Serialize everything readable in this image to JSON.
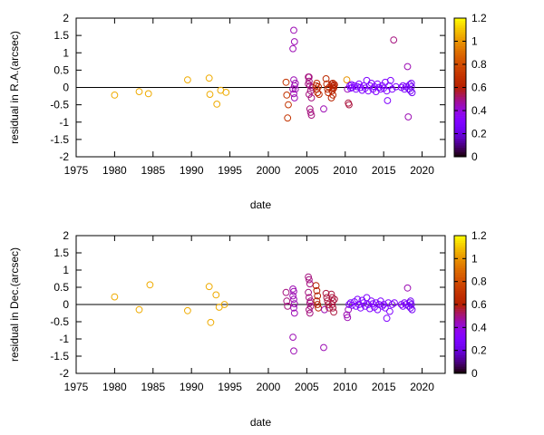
{
  "chart_data": [
    {
      "type": "scatter",
      "xlabel": "date",
      "ylabel": "residual in R.A.(arcsec)",
      "xlim": [
        1975,
        2023
      ],
      "ylim": [
        -2,
        2
      ],
      "xticks": [
        1975,
        1980,
        1985,
        1990,
        1995,
        2000,
        2005,
        2010,
        2015,
        2020
      ],
      "yticks": [
        -2,
        -1.5,
        -1,
        -0.5,
        0,
        0.5,
        1,
        1.5,
        2
      ],
      "colorbar": {
        "label": "",
        "range": [
          0,
          1.2
        ],
        "ticks": [
          0,
          0.2,
          0.4,
          0.6,
          0.8,
          1,
          1.2
        ]
      },
      "points": [
        [
          1980.0,
          -0.22,
          1.05
        ],
        [
          1983.2,
          -0.12,
          1.05
        ],
        [
          1984.4,
          -0.18,
          1.05
        ],
        [
          1989.5,
          0.22,
          1.05
        ],
        [
          1992.3,
          0.27,
          1.05
        ],
        [
          1992.4,
          -0.2,
          1.05
        ],
        [
          1993.3,
          -0.48,
          1.05
        ],
        [
          1993.8,
          -0.08,
          1.05
        ],
        [
          1994.5,
          -0.14,
          1.05
        ],
        [
          2002.3,
          0.15,
          0.7
        ],
        [
          2002.4,
          -0.22,
          0.7
        ],
        [
          2002.5,
          -0.88,
          0.7
        ],
        [
          2002.6,
          -0.5,
          0.7
        ],
        [
          2003.3,
          1.65,
          0.45
        ],
        [
          2003.4,
          1.32,
          0.45
        ],
        [
          2003.2,
          1.12,
          0.45
        ],
        [
          2003.3,
          0.22,
          0.45
        ],
        [
          2003.4,
          0.05,
          0.45
        ],
        [
          2003.5,
          -0.05,
          0.45
        ],
        [
          2003.3,
          -0.18,
          0.45
        ],
        [
          2003.4,
          -0.3,
          0.45
        ],
        [
          2003.5,
          0.12,
          0.45
        ],
        [
          2003.2,
          -0.05,
          0.45
        ],
        [
          2005.2,
          0.3,
          0.5
        ],
        [
          2005.3,
          0.18,
          0.5
        ],
        [
          2005.4,
          0.05,
          0.5
        ],
        [
          2005.5,
          -0.1,
          0.5
        ],
        [
          2005.3,
          -0.2,
          0.5
        ],
        [
          2005.4,
          -0.62,
          0.5
        ],
        [
          2005.5,
          -0.72,
          0.5
        ],
        [
          2005.6,
          -0.8,
          0.5
        ],
        [
          2005.2,
          0.1,
          0.5
        ],
        [
          2005.6,
          -0.3,
          0.5
        ],
        [
          2005.7,
          0.0,
          0.5
        ],
        [
          2005.3,
          0.3,
          0.5
        ],
        [
          2006.2,
          0.05,
          0.65
        ],
        [
          2006.3,
          -0.05,
          0.65
        ],
        [
          2006.4,
          -0.15,
          0.65
        ],
        [
          2006.5,
          0.02,
          0.65
        ],
        [
          2006.6,
          -0.2,
          0.65
        ],
        [
          2006.3,
          0.12,
          0.65
        ],
        [
          2007.2,
          -0.62,
          0.45
        ],
        [
          2007.5,
          0.25,
          0.65
        ],
        [
          2007.6,
          0.1,
          0.65
        ],
        [
          2007.7,
          -0.05,
          0.65
        ],
        [
          2007.8,
          -0.15,
          0.65
        ],
        [
          2007.9,
          0.0,
          0.65
        ],
        [
          2008.2,
          0.1,
          0.62
        ],
        [
          2008.3,
          0.05,
          0.62
        ],
        [
          2008.4,
          0.0,
          0.62
        ],
        [
          2008.5,
          -0.02,
          0.62
        ],
        [
          2008.3,
          -0.1,
          0.62
        ],
        [
          2008.4,
          -0.22,
          0.62
        ],
        [
          2008.5,
          0.05,
          0.62
        ],
        [
          2008.2,
          -0.3,
          0.62
        ],
        [
          2008.6,
          0.08,
          0.62
        ],
        [
          2008.4,
          0.12,
          0.62
        ],
        [
          2010.2,
          0.22,
          1.0
        ],
        [
          2010.3,
          -0.05,
          0.45
        ],
        [
          2010.4,
          -0.45,
          0.55
        ],
        [
          2010.5,
          -0.5,
          0.55
        ],
        [
          2010.6,
          0.05,
          0.3
        ],
        [
          2010.7,
          -0.02,
          0.3
        ],
        [
          2010.8,
          0.08,
          0.3
        ],
        [
          2010.9,
          0.0,
          0.3
        ],
        [
          2011.2,
          0.05,
          0.3
        ],
        [
          2011.4,
          -0.05,
          0.3
        ],
        [
          2011.6,
          0.02,
          0.3
        ],
        [
          2011.8,
          0.1,
          0.3
        ],
        [
          2012.0,
          0.0,
          0.3
        ],
        [
          2012.2,
          -0.08,
          0.3
        ],
        [
          2012.4,
          0.05,
          0.3
        ],
        [
          2012.6,
          -0.02,
          0.3
        ],
        [
          2012.8,
          0.2,
          0.3
        ],
        [
          2013.0,
          -0.1,
          0.3
        ],
        [
          2013.2,
          0.05,
          0.3
        ],
        [
          2013.4,
          0.12,
          0.3
        ],
        [
          2013.6,
          -0.05,
          0.3
        ],
        [
          2013.8,
          0.02,
          0.3
        ],
        [
          2014.0,
          -0.12,
          0.3
        ],
        [
          2014.2,
          0.1,
          0.3
        ],
        [
          2014.4,
          0.0,
          0.3
        ],
        [
          2014.6,
          -0.05,
          0.3
        ],
        [
          2014.8,
          0.05,
          0.3
        ],
        [
          2015.0,
          -0.02,
          0.3
        ],
        [
          2015.2,
          0.15,
          0.3
        ],
        [
          2015.4,
          -0.1,
          0.3
        ],
        [
          2015.5,
          -0.38,
          0.3
        ],
        [
          2015.7,
          0.05,
          0.3
        ],
        [
          2015.9,
          0.2,
          0.3
        ],
        [
          2016.1,
          -0.05,
          0.3
        ],
        [
          2016.3,
          1.37,
          0.5
        ],
        [
          2016.6,
          0.02,
          0.3
        ],
        [
          2017.3,
          0.0,
          0.3
        ],
        [
          2017.5,
          0.05,
          0.3
        ],
        [
          2017.7,
          -0.05,
          0.3
        ],
        [
          2017.9,
          0.02,
          0.3
        ],
        [
          2018.1,
          0.6,
          0.45
        ],
        [
          2018.2,
          -0.85,
          0.45
        ],
        [
          2018.3,
          -0.05,
          0.25
        ],
        [
          2018.4,
          0.08,
          0.25
        ],
        [
          2018.5,
          -0.1,
          0.25
        ],
        [
          2018.6,
          0.02,
          0.25
        ],
        [
          2018.7,
          -0.15,
          0.25
        ],
        [
          2018.6,
          0.12,
          0.25
        ]
      ]
    },
    {
      "type": "scatter",
      "xlabel": "date",
      "ylabel": "residual in Dec.(arcsec)",
      "xlim": [
        1975,
        2023
      ],
      "ylim": [
        -2,
        2
      ],
      "xticks": [
        1975,
        1980,
        1985,
        1990,
        1995,
        2000,
        2005,
        2010,
        2015,
        2020
      ],
      "yticks": [
        -2,
        -1.5,
        -1,
        -0.5,
        0,
        0.5,
        1,
        1.5,
        2
      ],
      "colorbar": {
        "label": "",
        "range": [
          0,
          1.2
        ],
        "ticks": [
          0,
          0.2,
          0.4,
          0.6,
          0.8,
          1,
          1.2
        ]
      },
      "points": [
        [
          1980.0,
          0.22,
          1.05
        ],
        [
          1983.2,
          -0.15,
          1.05
        ],
        [
          1984.6,
          0.57,
          1.05
        ],
        [
          1989.5,
          -0.18,
          1.05
        ],
        [
          1992.3,
          0.52,
          1.05
        ],
        [
          1992.5,
          -0.52,
          1.05
        ],
        [
          1993.2,
          0.28,
          1.05
        ],
        [
          1993.6,
          -0.08,
          1.05
        ],
        [
          1994.3,
          0.0,
          1.05
        ],
        [
          2002.3,
          0.35,
          0.5
        ],
        [
          2002.4,
          0.1,
          0.5
        ],
        [
          2002.5,
          -0.05,
          0.5
        ],
        [
          2003.2,
          0.45,
          0.45
        ],
        [
          2003.3,
          0.38,
          0.45
        ],
        [
          2003.2,
          0.25,
          0.45
        ],
        [
          2003.3,
          0.15,
          0.45
        ],
        [
          2003.4,
          0.02,
          0.45
        ],
        [
          2003.3,
          -0.1,
          0.45
        ],
        [
          2003.4,
          -0.25,
          0.45
        ],
        [
          2003.2,
          -0.95,
          0.45
        ],
        [
          2003.3,
          -1.35,
          0.45
        ],
        [
          2005.2,
          0.8,
          0.5
        ],
        [
          2005.3,
          0.72,
          0.5
        ],
        [
          2005.4,
          0.6,
          0.5
        ],
        [
          2005.2,
          0.35,
          0.5
        ],
        [
          2005.3,
          0.2,
          0.5
        ],
        [
          2005.4,
          0.05,
          0.5
        ],
        [
          2005.5,
          -0.05,
          0.5
        ],
        [
          2005.3,
          -0.15,
          0.5
        ],
        [
          2005.4,
          -0.25,
          0.5
        ],
        [
          2005.5,
          0.1,
          0.5
        ],
        [
          2006.2,
          0.55,
          0.6
        ],
        [
          2006.3,
          0.4,
          0.6
        ],
        [
          2006.4,
          0.25,
          0.6
        ],
        [
          2006.3,
          0.1,
          0.6
        ],
        [
          2006.4,
          0.0,
          0.6
        ],
        [
          2006.5,
          -0.1,
          0.6
        ],
        [
          2007.2,
          -1.25,
          0.45
        ],
        [
          2007.3,
          -0.15,
          0.45
        ],
        [
          2007.5,
          0.32,
          0.55
        ],
        [
          2007.6,
          0.2,
          0.55
        ],
        [
          2007.7,
          0.1,
          0.55
        ],
        [
          2007.8,
          0.0,
          0.55
        ],
        [
          2007.9,
          -0.1,
          0.55
        ],
        [
          2008.2,
          0.3,
          0.55
        ],
        [
          2008.3,
          0.2,
          0.55
        ],
        [
          2008.4,
          0.1,
          0.55
        ],
        [
          2008.3,
          0.0,
          0.55
        ],
        [
          2008.4,
          -0.1,
          0.55
        ],
        [
          2008.5,
          -0.22,
          0.55
        ],
        [
          2008.6,
          0.15,
          0.55
        ],
        [
          2010.2,
          -0.3,
          0.45
        ],
        [
          2010.3,
          -0.38,
          0.45
        ],
        [
          2010.4,
          -0.15,
          0.45
        ],
        [
          2010.5,
          0.0,
          0.3
        ],
        [
          2010.7,
          0.05,
          0.3
        ],
        [
          2010.9,
          -0.02,
          0.3
        ],
        [
          2011.2,
          0.08,
          0.3
        ],
        [
          2011.4,
          -0.05,
          0.3
        ],
        [
          2011.6,
          0.15,
          0.3
        ],
        [
          2011.8,
          0.0,
          0.3
        ],
        [
          2012.0,
          -0.1,
          0.3
        ],
        [
          2012.2,
          0.12,
          0.3
        ],
        [
          2012.4,
          0.05,
          0.3
        ],
        [
          2012.6,
          -0.05,
          0.3
        ],
        [
          2012.8,
          0.2,
          0.3
        ],
        [
          2013.0,
          0.0,
          0.3
        ],
        [
          2013.2,
          -0.12,
          0.3
        ],
        [
          2013.4,
          0.1,
          0.3
        ],
        [
          2013.6,
          0.02,
          0.3
        ],
        [
          2013.8,
          -0.08,
          0.3
        ],
        [
          2014.0,
          0.05,
          0.3
        ],
        [
          2014.2,
          -0.15,
          0.3
        ],
        [
          2014.4,
          0.0,
          0.3
        ],
        [
          2014.6,
          0.1,
          0.3
        ],
        [
          2014.8,
          -0.05,
          0.3
        ],
        [
          2015.0,
          0.0,
          0.3
        ],
        [
          2015.2,
          -0.1,
          0.3
        ],
        [
          2015.4,
          -0.4,
          0.3
        ],
        [
          2015.6,
          0.05,
          0.3
        ],
        [
          2015.8,
          -0.2,
          0.3
        ],
        [
          2016.1,
          0.0,
          0.3
        ],
        [
          2016.4,
          0.05,
          0.3
        ],
        [
          2017.3,
          0.0,
          0.3
        ],
        [
          2017.5,
          -0.05,
          0.3
        ],
        [
          2017.7,
          0.05,
          0.3
        ],
        [
          2017.9,
          0.0,
          0.3
        ],
        [
          2018.1,
          0.48,
          0.45
        ],
        [
          2018.3,
          -0.05,
          0.25
        ],
        [
          2018.4,
          0.05,
          0.25
        ],
        [
          2018.5,
          -0.1,
          0.25
        ],
        [
          2018.6,
          0.0,
          0.25
        ],
        [
          2018.7,
          -0.15,
          0.25
        ],
        [
          2018.5,
          0.1,
          0.25
        ]
      ]
    }
  ]
}
